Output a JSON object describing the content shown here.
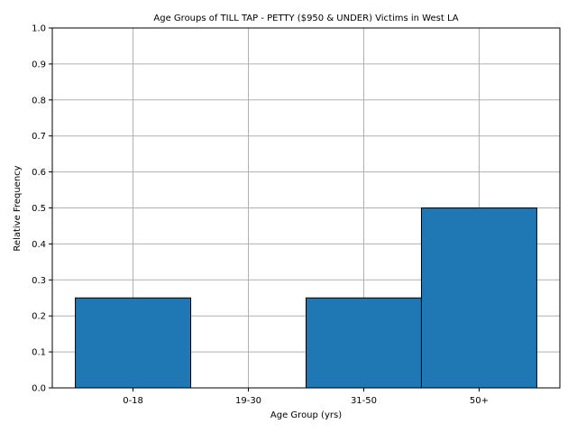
{
  "chart_data": {
    "type": "bar",
    "title": "Age Groups of TILL TAP - PETTY ($950 & UNDER) Victims in West LA",
    "xlabel": "Age Group (yrs)",
    "ylabel": "Relative Frequency",
    "categories": [
      "0-18",
      "19-30",
      "31-50",
      "50+"
    ],
    "values": [
      0.25,
      0.0,
      0.25,
      0.5
    ],
    "ylim": [
      0,
      1.0
    ],
    "yticks": [
      "0.0",
      "0.1",
      "0.2",
      "0.3",
      "0.4",
      "0.5",
      "0.6",
      "0.7",
      "0.8",
      "0.9",
      "1.0"
    ],
    "grid": true,
    "legend": "none",
    "colors": {
      "bar": "#1f77b4",
      "edge": "#000000",
      "grid": "#b0b0b0"
    }
  }
}
